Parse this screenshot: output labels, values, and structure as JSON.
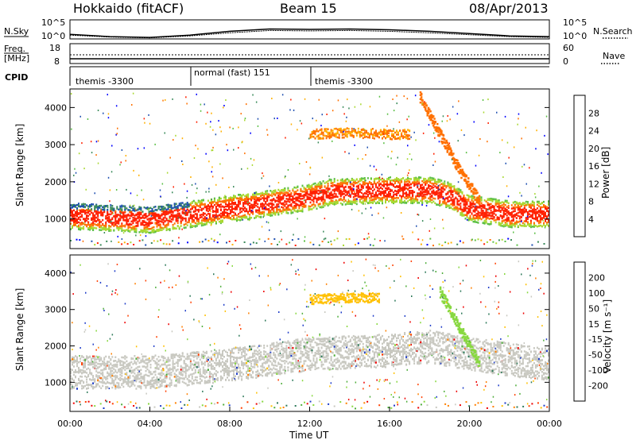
{
  "header": {
    "station": "Hokkaido (fitACF)",
    "beam": "Beam 15",
    "date": "08/Apr/2013"
  },
  "noise_panel": {
    "left_label": "N.Sky",
    "right_label": "N.Search",
    "y_ticks_left": [
      "10^5",
      "10^0"
    ],
    "y_ticks_right": [
      "10^5",
      "10^0"
    ]
  },
  "freq_panel": {
    "left_label_1": "Freq.",
    "left_label_2": "[MHz]",
    "right_label": "Nave",
    "y_ticks_left": [
      "18",
      "8"
    ],
    "y_ticks_right": [
      "60",
      "0"
    ]
  },
  "cpid_panel": {
    "label": "CPID",
    "segments": [
      {
        "name": "themis -3300",
        "start_hour": 0,
        "end_hour": 6
      },
      {
        "name": "normal (fast) 151",
        "start_hour": 6,
        "end_hour": 12
      },
      {
        "name": "themis -3300",
        "start_hour": 12,
        "end_hour": 24
      }
    ]
  },
  "power_panel": {
    "ylabel": "Slant Range [km]",
    "yticks": [
      "1000",
      "2000",
      "3000",
      "4000"
    ],
    "colorbar_label": "Power [dB]",
    "colorbar_ticks": [
      "4",
      "8",
      "12",
      "16",
      "20",
      "24",
      "28"
    ],
    "colors": [
      "#0000ff",
      "#1e4fb0",
      "#3a8a5a",
      "#5bbf45",
      "#a8d830",
      "#ffb000",
      "#ff7000",
      "#ff2000"
    ]
  },
  "velocity_panel": {
    "ylabel": "Slant Range [km]",
    "yticks": [
      "1000",
      "2000",
      "3000",
      "4000"
    ],
    "colorbar_label": "Velocity [m s⁻¹]",
    "colorbar_ticks": [
      "200",
      "100",
      "50",
      "15",
      "-15",
      "-50",
      "-100",
      "-200"
    ],
    "colors": [
      "#1e3cc8",
      "#2e7a5a",
      "#4fae3c",
      "#88d840",
      "#c8c8c0",
      "#ffc000",
      "#ff8000",
      "#ff4000",
      "#ee0000"
    ]
  },
  "x_axis": {
    "label": "Time UT",
    "ticks": [
      "00:00",
      "04:00",
      "08:00",
      "12:00",
      "16:00",
      "20:00",
      "00:00"
    ]
  },
  "chart_data": [
    {
      "type": "line",
      "title": "Hokkaido (fitACF)",
      "subtitle": "Beam 15",
      "series": [
        {
          "name": "N.Sky",
          "x_hours": [
            0,
            2,
            4,
            6,
            8,
            10,
            12,
            14,
            16,
            18,
            20,
            22,
            24
          ],
          "log10_values": [
            1.2,
            0.6,
            0.4,
            1.0,
            2.0,
            2.6,
            2.5,
            2.6,
            2.4,
            2.0,
            1.4,
            0.8,
            0.6
          ]
        },
        {
          "name": "N.Search",
          "x_hours": [
            0,
            2,
            4,
            6,
            8,
            10,
            12,
            14,
            16,
            18,
            20,
            22,
            24
          ],
          "log10_values": [
            1.0,
            0.5,
            0.3,
            0.8,
            1.6,
            2.2,
            2.1,
            2.2,
            2.0,
            1.6,
            1.1,
            0.6,
            0.4
          ]
        }
      ],
      "ylim": [
        0,
        5
      ]
    },
    {
      "type": "heatmap",
      "xlabel": "Time UT",
      "ylabel": "Slant Range [km]",
      "colorbar": "Power [dB]",
      "xlim_hours": [
        0,
        24
      ],
      "ylim": [
        200,
        4500
      ],
      "clim": [
        0,
        32
      ],
      "features": [
        {
          "name": "main echo band",
          "x_hours": [
            0,
            2,
            4,
            6,
            8,
            10,
            12,
            13,
            16,
            18,
            19,
            20,
            22,
            24
          ],
          "range_km": [
            1100,
            1050,
            1000,
            1150,
            1300,
            1450,
            1600,
            1750,
            1800,
            1800,
            1650,
            1300,
            1150,
            1150
          ],
          "power_db": 28
        },
        {
          "name": "upper band",
          "x_hours": [
            12,
            14,
            16,
            17
          ],
          "range_km": [
            3300,
            3350,
            3300,
            3300
          ],
          "power_db": 22
        },
        {
          "name": "descending streak",
          "x_hours": [
            17.5,
            18.5,
            19.5,
            20.5
          ],
          "range_km": [
            4300,
            3300,
            2300,
            1500
          ],
          "power_db": 24
        }
      ]
    },
    {
      "type": "heatmap",
      "xlabel": "Time UT",
      "ylabel": "Slant Range [km]",
      "colorbar": "Velocity [m s⁻¹]",
      "xlim_hours": [
        0,
        24
      ],
      "ylim": [
        200,
        4500
      ],
      "clim": [
        -200,
        200
      ],
      "features": [
        {
          "name": "ground scatter band",
          "x_hours": [
            0,
            4,
            8,
            12,
            16,
            18,
            20,
            24
          ],
          "range_km": [
            1300,
            1300,
            1500,
            1800,
            1900,
            2000,
            1800,
            1500
          ],
          "velocity": 0
        },
        {
          "name": "upper band",
          "x_hours": [
            12,
            14,
            15.5
          ],
          "range_km": [
            3300,
            3350,
            3350
          ],
          "velocity": -50
        },
        {
          "name": "descending streak",
          "x_hours": [
            18.5,
            19.5,
            20.5
          ],
          "range_km": [
            3500,
            2500,
            1500
          ],
          "velocity": 60
        }
      ]
    }
  ]
}
